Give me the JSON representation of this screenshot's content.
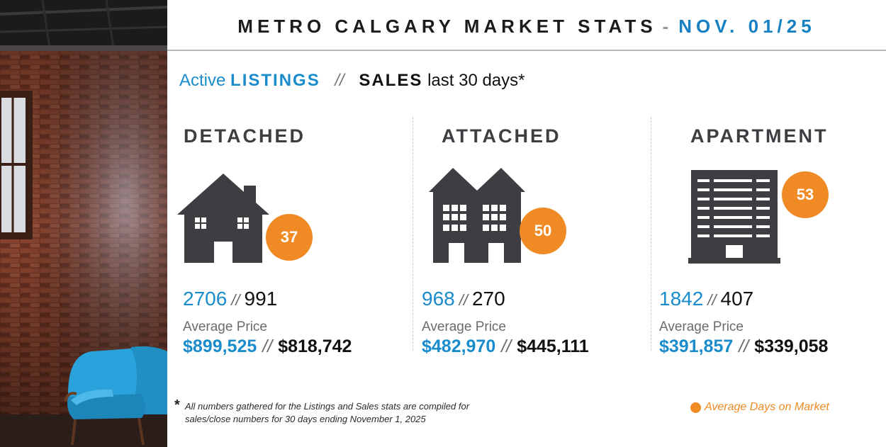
{
  "header": {
    "title": "METRO CALGARY MARKET STATS",
    "separator": "-",
    "date": "NOV. 01/25"
  },
  "subheading": {
    "active": "Active",
    "listings": "LISTINGS",
    "divider": "//",
    "sales": "SALES",
    "period": "last 30 days*"
  },
  "categories": [
    {
      "name": "DETACHED",
      "icon": "house-icon",
      "days_on_market": "37",
      "listings": "2706",
      "sales": "991",
      "avg_price_label": "Average Price",
      "avg_list_price": "$899,525",
      "avg_sale_price": "$818,742"
    },
    {
      "name": "ATTACHED",
      "icon": "townhouse-icon",
      "days_on_market": "50",
      "listings": "968",
      "sales": "270",
      "avg_price_label": "Average Price",
      "avg_list_price": "$482,970",
      "avg_sale_price": "$445,111"
    },
    {
      "name": "APARTMENT",
      "icon": "apartment-icon",
      "days_on_market": "53",
      "listings": "1842",
      "sales": "407",
      "avg_price_label": "Average Price",
      "avg_list_price": "$391,857",
      "avg_sale_price": "$339,058"
    }
  ],
  "slash": "//",
  "footnote": {
    "star": "*",
    "line1": "All numbers gathered for the Listings and Sales stats are compiled for",
    "line2": "sales/close numbers for 30 days ending November 1, 2025"
  },
  "legend": {
    "label": "Average Days on Market"
  },
  "colors": {
    "accent_blue": "#1a8ccc",
    "accent_orange": "#f08a24",
    "icon_dark": "#3d3d42"
  }
}
